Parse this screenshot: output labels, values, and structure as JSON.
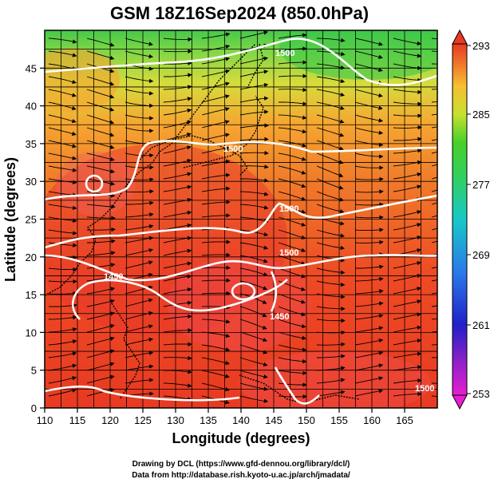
{
  "title": "GSM 18Z16Sep2024 (850.0hPa)",
  "xlabel": "Longitude (degrees)",
  "ylabel": "Latitude  (degrees)",
  "x_ticks": [
    "110",
    "115",
    "120",
    "125",
    "130",
    "135",
    "140",
    "145",
    "150",
    "155",
    "160",
    "165"
  ],
  "y_ticks": [
    "0",
    "5",
    "10",
    "15",
    "20",
    "25",
    "30",
    "35",
    "40",
    "45"
  ],
  "colorbar": {
    "labels": [
      "293",
      "285",
      "277",
      "269",
      "261",
      "253"
    ],
    "values": [
      293,
      285,
      277,
      269,
      261,
      253
    ],
    "min": 253,
    "max": 293
  },
  "contour_labels": [
    "1500",
    "1500",
    "1500",
    "1500",
    "1450",
    "1450",
    "1500"
  ],
  "credits": {
    "line1": "Drawing by DCL (https://www.gfd-dennou.org/library/dcl/)",
    "line2": "Data from http://database.rish.kyoto-u.ac.jp/arch/jmadata/"
  },
  "map": {
    "lon_range": [
      110,
      170
    ],
    "lat_range": [
      0,
      50
    ],
    "variable": "temperature",
    "units": "K"
  }
}
